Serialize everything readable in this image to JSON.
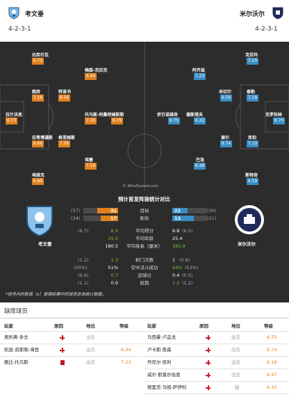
{
  "home": {
    "name": "考文垂",
    "formation": "4-2-3-1",
    "short": "考文垂"
  },
  "away": {
    "name": "米尔沃尔",
    "formation": "4-2-3-1",
    "short": "米尔沃尔"
  },
  "home_players": [
    {
      "name": "达库尔瓦",
      "rating": "6.75"
    },
    {
      "name": "梅森-克拉克",
      "rating": "6.94"
    },
    {
      "name": "朗房",
      "rating": "7.16"
    },
    {
      "name": "特谁书",
      "rating": "6.56"
    },
    {
      "name": "拉什沃思",
      "rating": "6.73"
    },
    {
      "name": "托马斯-阿桑特姆斯斯",
      "rating": "7.20"
    },
    {
      "name": "",
      "rating": "6.79"
    },
    {
      "name": "拉哥博通斯",
      "rating": "6.66"
    },
    {
      "name": "格里姆斯",
      "rating": "7.09"
    },
    {
      "name": "埃塞",
      "rating": "7.19"
    },
    {
      "name": "埃维克",
      "rating": "6.85"
    }
  ],
  "away_players": [
    {
      "name": "克拉玛",
      "rating": "7.20"
    },
    {
      "name": "阿齐兹",
      "rating": "7.23"
    },
    {
      "name": "米切尔",
      "rating": "6.59"
    },
    {
      "name": "泰勒",
      "rating": "7.18"
    },
    {
      "name": "伊万诺维奇",
      "rating": "6.75"
    },
    {
      "name": "德斯塔夫",
      "rating": "6.22"
    },
    {
      "name": "克罗科林",
      "rating": "6.70"
    },
    {
      "name": "谢尔",
      "rating": "6.74"
    },
    {
      "name": "库珀",
      "rating": "7.10"
    },
    {
      "name": "巴洛",
      "rating": "6.48"
    },
    {
      "name": "斯特奇",
      "rating": "6.59"
    }
  ],
  "watermark": "© WhoScored.com",
  "stats": {
    "title": "预计首发阵容统计对比",
    "rows": [
      {
        "label": "目标",
        "home": "31",
        "home_pre": "(37)",
        "away": "22",
        "away_pre": "(30)",
        "home_bar": 0.58,
        "away_bar": 0.42
      },
      {
        "label": "助攻",
        "home": "17",
        "home_pre": "(34)",
        "away": "13",
        "away_pre": "(21)",
        "home_bar": 0.57,
        "away_bar": 0.43
      },
      {
        "label": "平均得分",
        "home": "6.9",
        "home_pre": "(6.7)",
        "away": "6.8",
        "away_pre": "(6.5)"
      },
      {
        "label": "平均年龄",
        "home": "25.5",
        "home_pre": "",
        "away": "25.4",
        "away_pre": ""
      },
      {
        "label": "平均身高（厘米）",
        "home": "180.5",
        "home_pre": "",
        "away": "183.9",
        "away_pre": ""
      },
      {
        "label": "射门次数",
        "home": "1.3",
        "home_pre": "(1.2)",
        "away": "1",
        "away_pre": "(0.8)"
      },
      {
        "label": "空中决斗成功",
        "home": "51%",
        "home_pre": "(50%)",
        "away": "54%",
        "away_pre": "(53%)"
      },
      {
        "label": "运球过",
        "home": "0.7",
        "home_pre": "(0.9)",
        "away": "0.4",
        "away_pre": "(0.5)"
      },
      {
        "label": "抢抱",
        "home": "0.9",
        "home_pre": "(1.1)",
        "away": "1.2",
        "away_pre": "(1.2)"
      }
    ],
    "note": "*括号内的数值（x）是锦标赛中的球员总体统计数据。"
  },
  "absent": {
    "title": "缺席球员",
    "headers": {
      "player": "玩家",
      "reason": "原因",
      "pos": "地位",
      "grade": "等级"
    },
    "home": [
      {
        "name": "奥利弗·多文",
        "reason": "injury",
        "status": "出去",
        "grade": ""
      },
      {
        "name": "凯恩-凯斯勒-海登",
        "reason": "injury",
        "status": "出去",
        "grade": "6.34"
      },
      {
        "name": "鲍比·托马斯",
        "reason": "card",
        "status": "出去",
        "grade": "7.23"
      }
    ],
    "away": [
      {
        "name": "马西曼·卢品戈",
        "reason": "injury",
        "status": "出去",
        "grade": "6.75"
      },
      {
        "name": "卢卡斯·詹森",
        "reason": "injury",
        "status": "出去",
        "grade": "6.74"
      },
      {
        "name": "丹尼尔·凯利",
        "reason": "injury",
        "status": "出去",
        "grade": "6.19"
      },
      {
        "name": "威尔·斯莫尔伯恩",
        "reason": "injury",
        "status": "出去",
        "grade": "6.47"
      },
      {
        "name": "德里克·马祖-萨伊科",
        "reason": "injury",
        "status": "疑",
        "grade": "6.43"
      }
    ]
  }
}
